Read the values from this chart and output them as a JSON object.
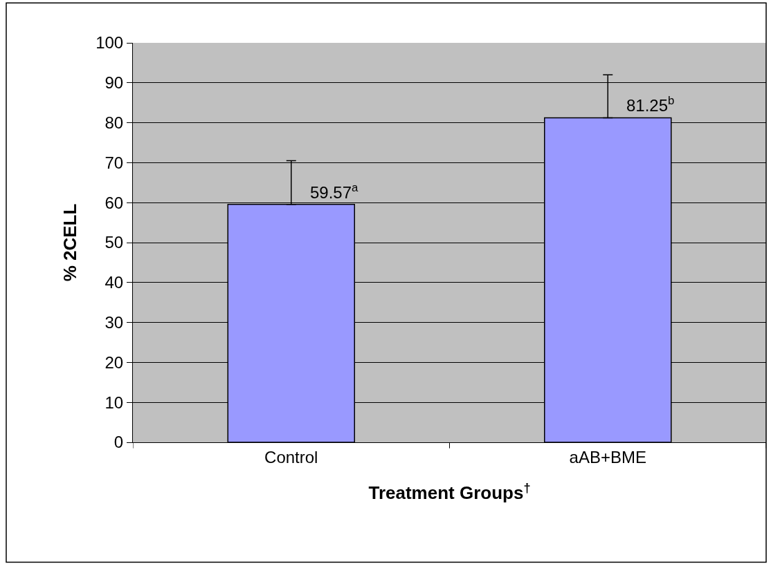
{
  "chart_data": {
    "type": "bar",
    "xlabel": "Treatment Groups$^{†}$",
    "ylabel": "% 2CELL",
    "categories": [
      "Control",
      "aAB+BME"
    ],
    "values": [
      59.57,
      81.25
    ],
    "value_labels": [
      "59.57$^{a}$",
      "81.25$^{b}$"
    ],
    "errors": [
      [
        59.57,
        70.5
      ],
      [
        81.25,
        92
      ]
    ],
    "color": "#9999ff",
    "ylim": [
      0,
      100
    ],
    "yticks": [
      0,
      10,
      20,
      30,
      40,
      50,
      60,
      70,
      80,
      90,
      100
    ],
    "grid": "y",
    "legend": false
  }
}
